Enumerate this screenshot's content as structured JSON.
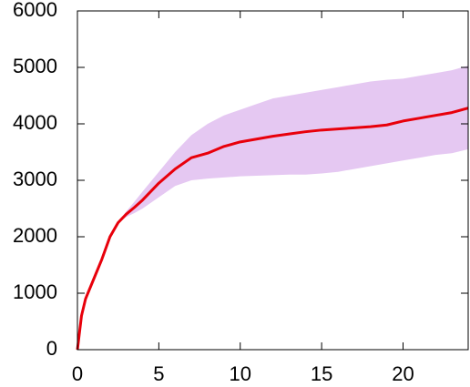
{
  "chart_data": {
    "type": "line",
    "x": [
      0,
      0.25,
      0.5,
      1,
      1.5,
      2,
      2.5,
      3,
      3.5,
      4,
      5,
      6,
      7,
      8,
      9,
      10,
      11,
      12,
      13,
      14,
      15,
      16,
      17,
      18,
      19,
      20,
      21,
      22,
      23,
      24
    ],
    "series": [
      {
        "color": "#e8000b",
        "values": [
          0,
          600,
          900,
          1250,
          1600,
          2000,
          2250,
          2400,
          2520,
          2650,
          2950,
          3200,
          3400,
          3480,
          3600,
          3680,
          3730,
          3780,
          3820,
          3860,
          3890,
          3910,
          3930,
          3950,
          3980,
          4050,
          4100,
          4150,
          4200,
          4280
        ]
      }
    ],
    "band": {
      "color": "#e5c8f2",
      "upper": [
        0,
        600,
        900,
        1250,
        1600,
        2000,
        2250,
        2450,
        2620,
        2800,
        3150,
        3500,
        3800,
        4000,
        4150,
        4250,
        4350,
        4450,
        4500,
        4550,
        4600,
        4650,
        4700,
        4750,
        4780,
        4800,
        4850,
        4900,
        4950,
        5030
      ],
      "lower": [
        0,
        600,
        900,
        1250,
        1600,
        2000,
        2250,
        2350,
        2420,
        2500,
        2700,
        2900,
        3000,
        3030,
        3050,
        3070,
        3080,
        3090,
        3100,
        3100,
        3120,
        3150,
        3200,
        3250,
        3300,
        3350,
        3400,
        3450,
        3480,
        3550
      ]
    },
    "xlim": [
      0,
      24
    ],
    "xticks": [
      0,
      5,
      10,
      15,
      20
    ],
    "ylim": [
      0,
      6000
    ],
    "yticks": [
      0,
      1000,
      2000,
      3000,
      4000,
      5000,
      6000
    ]
  }
}
